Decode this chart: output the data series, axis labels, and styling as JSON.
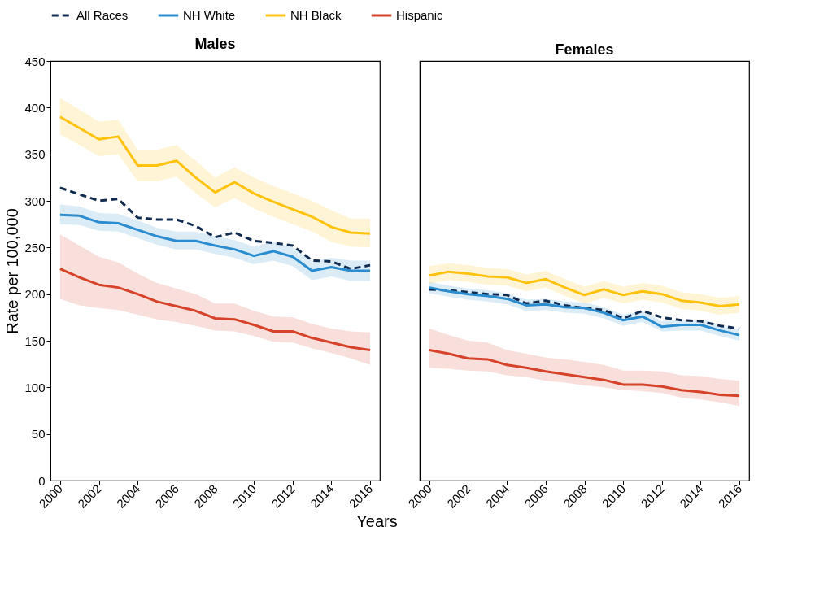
{
  "chart_data": [
    {
      "type": "line",
      "title": "Males",
      "xlabel": "Years",
      "ylabel": "Rate per 100,000",
      "x": [
        2000,
        2001,
        2002,
        2003,
        2004,
        2005,
        2006,
        2007,
        2008,
        2009,
        2010,
        2011,
        2012,
        2013,
        2014,
        2015,
        2016
      ],
      "series": [
        {
          "name": "All Races",
          "color": "#112a4f",
          "line_style": "dashed",
          "values": [
            314,
            307,
            300,
            302,
            282,
            280,
            280,
            273,
            261,
            266,
            257,
            255,
            252,
            236,
            235,
            227,
            231
          ]
        },
        {
          "name": "NH White",
          "color": "#2b8cd0",
          "line_style": "solid",
          "values": [
            285,
            284,
            277,
            276,
            269,
            262,
            257,
            257,
            252,
            248,
            241,
            246,
            240,
            225,
            229,
            225,
            225
          ],
          "lower": [
            275,
            274,
            268,
            267,
            260,
            253,
            248,
            248,
            243,
            239,
            232,
            236,
            230,
            215,
            219,
            214,
            214
          ],
          "upper": [
            296,
            294,
            287,
            286,
            279,
            271,
            267,
            267,
            262,
            258,
            251,
            256,
            250,
            235,
            239,
            236,
            236
          ]
        },
        {
          "name": "NH Black",
          "color": "#ffc20e",
          "line_style": "solid",
          "values": [
            390,
            378,
            366,
            369,
            338,
            338,
            343,
            325,
            309,
            320,
            308,
            299,
            291,
            283,
            272,
            266,
            265
          ],
          "lower": [
            371,
            360,
            348,
            350,
            321,
            321,
            326,
            308,
            293,
            303,
            292,
            283,
            275,
            267,
            256,
            251,
            250
          ],
          "upper": [
            410,
            398,
            385,
            387,
            355,
            355,
            360,
            343,
            325,
            336,
            325,
            316,
            308,
            300,
            290,
            281,
            281
          ]
        },
        {
          "name": "Hispanic",
          "color": "#d6422a",
          "line_style": "solid",
          "values": [
            227,
            218,
            210,
            207,
            200,
            192,
            187,
            182,
            174,
            173,
            167,
            160,
            160,
            153,
            148,
            143,
            140
          ],
          "lower": [
            195,
            188,
            185,
            183,
            178,
            173,
            170,
            166,
            161,
            160,
            155,
            149,
            148,
            142,
            137,
            131,
            124
          ],
          "upper": [
            264,
            252,
            240,
            234,
            222,
            212,
            206,
            200,
            190,
            190,
            182,
            176,
            175,
            168,
            163,
            160,
            159
          ]
        }
      ],
      "xlim": [
        1999.5,
        2016.5
      ],
      "xticks": [
        2000,
        2002,
        2004,
        2006,
        2008,
        2010,
        2012,
        2014,
        2016
      ],
      "ylim": [
        0,
        450
      ],
      "yticks": [
        0,
        50,
        100,
        150,
        200,
        250,
        300,
        350,
        400,
        450
      ],
      "grid": false,
      "legend": "top"
    },
    {
      "type": "line",
      "title": "Females",
      "x": [
        2000,
        2001,
        2002,
        2003,
        2004,
        2005,
        2006,
        2007,
        2008,
        2009,
        2010,
        2011,
        2012,
        2013,
        2014,
        2015,
        2016
      ],
      "series": [
        {
          "name": "All Races",
          "color": "#112a4f",
          "line_style": "dashed",
          "values": [
            205,
            204,
            202,
            200,
            199,
            190,
            193,
            188,
            185,
            183,
            174,
            182,
            175,
            172,
            171,
            166,
            163
          ]
        },
        {
          "name": "NH White",
          "color": "#2b8cd0",
          "line_style": "solid",
          "values": [
            207,
            203,
            200,
            198,
            195,
            188,
            189,
            186,
            185,
            180,
            172,
            176,
            165,
            167,
            167,
            161,
            156
          ],
          "lower": [
            201,
            197,
            194,
            192,
            189,
            182,
            183,
            180,
            179,
            174,
            166,
            170,
            160,
            161,
            161,
            155,
            150
          ],
          "upper": [
            213,
            209,
            206,
            204,
            201,
            194,
            195,
            192,
            191,
            186,
            178,
            182,
            171,
            173,
            173,
            167,
            162
          ]
        },
        {
          "name": "NH Black",
          "color": "#ffc20e",
          "line_style": "solid",
          "values": [
            220,
            224,
            222,
            219,
            218,
            212,
            216,
            207,
            199,
            205,
            199,
            203,
            200,
            193,
            191,
            187,
            189
          ],
          "lower": [
            211,
            215,
            213,
            210,
            209,
            203,
            207,
            198,
            190,
            196,
            190,
            194,
            191,
            184,
            182,
            178,
            180
          ],
          "upper": [
            230,
            233,
            231,
            228,
            227,
            221,
            225,
            216,
            208,
            214,
            208,
            212,
            209,
            202,
            200,
            196,
            198
          ]
        },
        {
          "name": "Hispanic",
          "color": "#d6422a",
          "line_style": "solid",
          "values": [
            140,
            136,
            131,
            130,
            124,
            121,
            117,
            114,
            111,
            108,
            103,
            103,
            101,
            97,
            95,
            92,
            91
          ],
          "lower": [
            121,
            120,
            118,
            117,
            113,
            111,
            107,
            105,
            102,
            100,
            97,
            96,
            94,
            89,
            87,
            84,
            80
          ],
          "upper": [
            163,
            156,
            150,
            148,
            140,
            136,
            132,
            130,
            127,
            124,
            118,
            118,
            117,
            113,
            112,
            109,
            107
          ]
        }
      ],
      "xlim": [
        1999.5,
        2016.5
      ],
      "xticks": [
        2000,
        2002,
        2004,
        2006,
        2008,
        2010,
        2012,
        2014,
        2016
      ],
      "ylim": [
        0,
        450
      ],
      "yticks": [
        0,
        50,
        100,
        150,
        200,
        250,
        300,
        350,
        400,
        450
      ],
      "grid": false,
      "legend": "top",
      "tick_labels": "x"
    }
  ]
}
